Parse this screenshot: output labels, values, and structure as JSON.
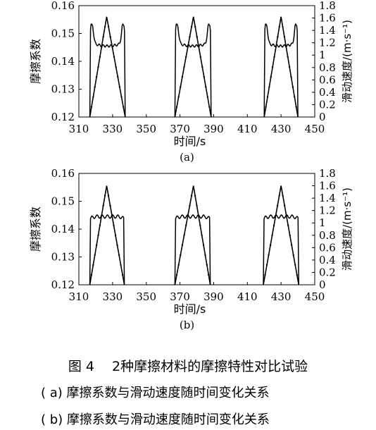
{
  "figure": {
    "caption": "图 4　 2种摩擦材料的摩擦特性对比试验",
    "sub_a": "( a)  摩擦系数与滑动速度随时间变化关系",
    "sub_b": "( b)  摩擦系数与滑动速度随时间变化关系"
  },
  "chart_data": [
    {
      "panel": "(a)",
      "type": "line",
      "xlabel": "时间/s",
      "ylabel_left": "摩擦系数",
      "ylabel_right": "滑动速度/(m·s⁻¹)",
      "xlim": [
        310,
        450
      ],
      "xticks": [
        "310",
        "330",
        "350",
        "370",
        "390",
        "410",
        "430",
        "450"
      ],
      "ylim_left": [
        0.12,
        0.16
      ],
      "yticks_left": [
        "0.12",
        "0.13",
        "0.14",
        "0.15",
        "0.16"
      ],
      "ylim_right": [
        0,
        1.8
      ],
      "yticks_right": [
        "0",
        "0.2",
        "0.4",
        "0.6",
        "0.8",
        "1",
        "1.2",
        "1.4",
        "1.6",
        "1.8"
      ],
      "cycles": [
        {
          "start": 316.5,
          "peak": 326.5,
          "end": 337.5
        },
        {
          "start": 367.0,
          "peak": 378.0,
          "end": 388.5
        },
        {
          "start": 420.0,
          "peak": 430.0,
          "end": 440.0
        }
      ],
      "speed_peak": 1.62,
      "friction_plateau": 0.1455,
      "friction_edge": 0.153,
      "friction_max_spike": 0.1545
    },
    {
      "panel": "(b)",
      "type": "line",
      "xlabel": "时间/s",
      "ylabel_left": "摩擦系数",
      "ylabel_right": "滑动速度/(m·s⁻¹)",
      "xlim": [
        310,
        450
      ],
      "xticks": [
        "310",
        "330",
        "350",
        "370",
        "390",
        "410",
        "430",
        "450"
      ],
      "ylim_left": [
        0.12,
        0.16
      ],
      "yticks_left": [
        "0.12",
        "0.13",
        "0.14",
        "0.15",
        "0.16"
      ],
      "ylim_right": [
        0,
        1.8
      ],
      "yticks_right": [
        "0",
        "0.2",
        "0.4",
        "0.6",
        "0.8",
        "1",
        "1.2",
        "1.4",
        "1.6",
        "1.8"
      ],
      "cycles": [
        {
          "start": 316.5,
          "peak": 326.5,
          "end": 337.0
        },
        {
          "start": 367.0,
          "peak": 378.0,
          "end": 388.0
        },
        {
          "start": 419.5,
          "peak": 430.0,
          "end": 440.5
        }
      ],
      "speed_peak": 1.6,
      "friction_plateau": 0.1445,
      "friction_edge": 0.1445,
      "friction_max_spike": 0.1445
    }
  ],
  "colors": {
    "line": "#000000",
    "background": "#ffffff"
  }
}
